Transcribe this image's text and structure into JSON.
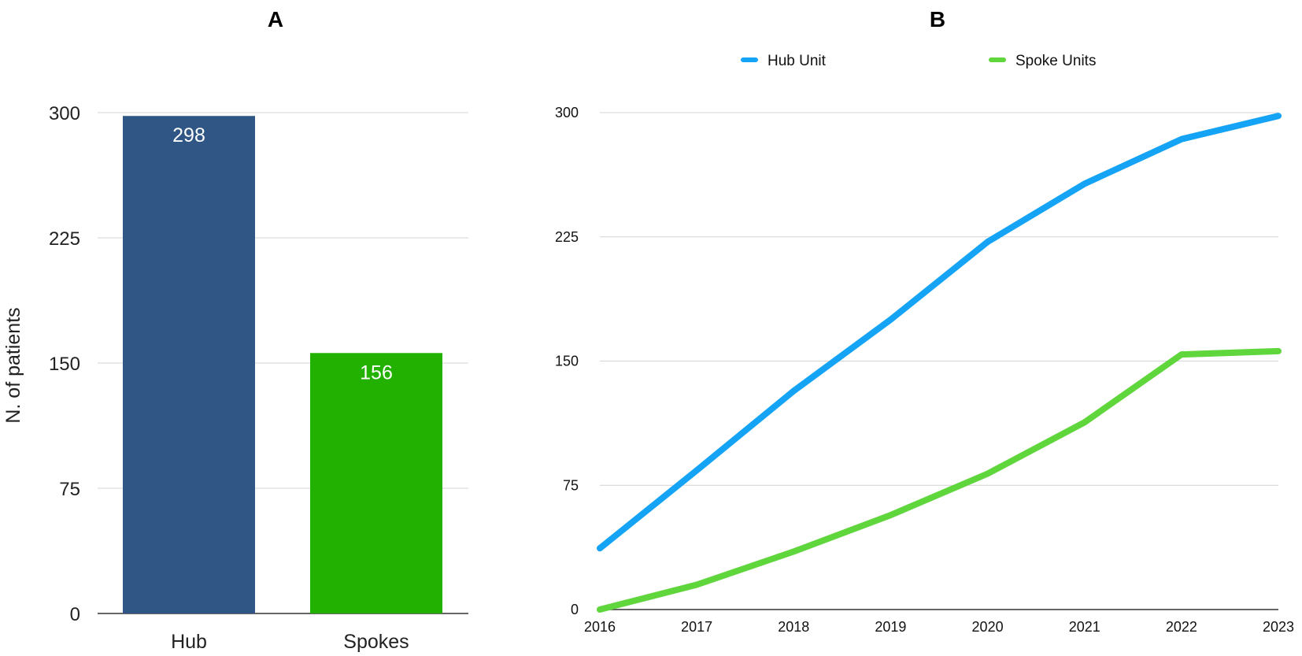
{
  "chart_data": [
    {
      "panel": "A",
      "type": "bar",
      "title": "A",
      "ylabel": "N. of patients",
      "xlabel": "",
      "ylim": [
        0,
        300
      ],
      "yticks": [
        0,
        75,
        150,
        225,
        300
      ],
      "categories": [
        "Hub",
        "Spokes"
      ],
      "values": [
        298,
        156
      ],
      "colors": [
        "#2f5685",
        "#22b100"
      ],
      "data_labels": [
        "298",
        "156"
      ],
      "grid": true
    },
    {
      "panel": "B",
      "type": "line",
      "title": "B",
      "xlabel": "",
      "ylabel": "",
      "ylim": [
        0,
        300
      ],
      "yticks": [
        0,
        75,
        150,
        225,
        300
      ],
      "x": [
        "2016",
        "2017",
        "2018",
        "2019",
        "2020",
        "2021",
        "2022",
        "2023"
      ],
      "legend_position": "top",
      "grid": true,
      "series": [
        {
          "name": "Hub Unit",
          "color": "#15a4f5",
          "values": [
            37,
            84,
            132,
            175,
            222,
            257,
            284,
            298
          ]
        },
        {
          "name": "Spoke Units",
          "color": "#5fd63c",
          "values": [
            0,
            15,
            35,
            57,
            82,
            113,
            154,
            156
          ]
        }
      ]
    }
  ]
}
